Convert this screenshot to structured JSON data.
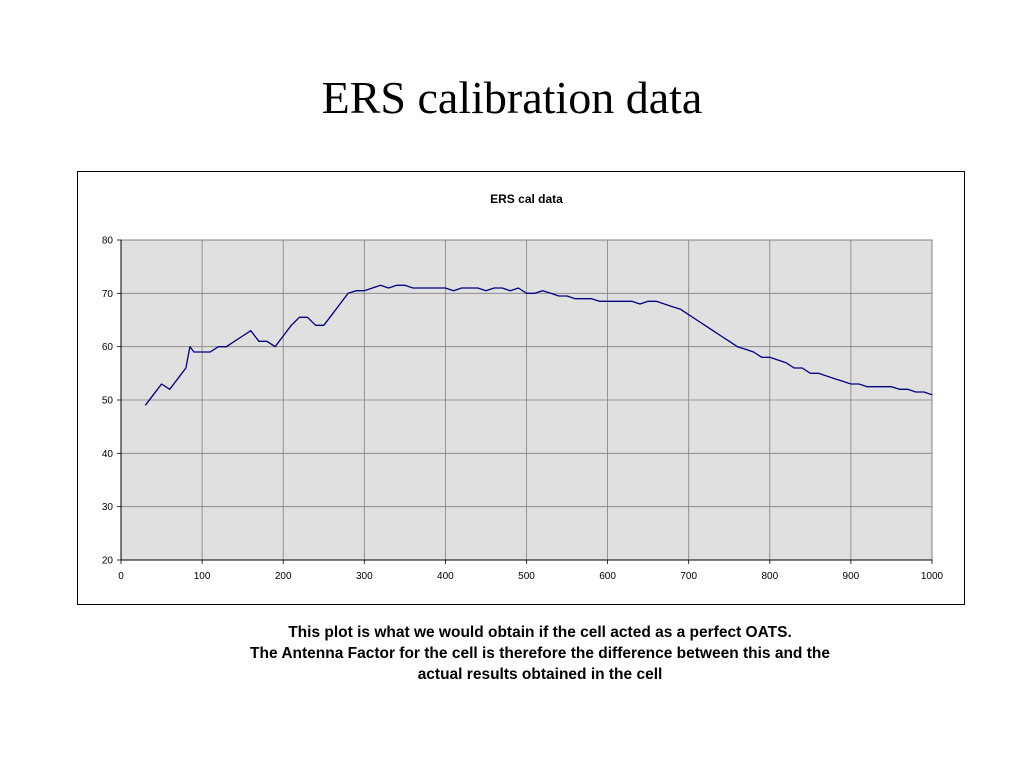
{
  "slide": {
    "title": "ERS calibration data",
    "caption": [
      "This plot is what we would obtain if the cell acted as a perfect OATS.",
      "The Antenna Factor for the cell is therefore the difference between this and the",
      "actual results obtained in the cell"
    ]
  },
  "colors": {
    "line": "#000080",
    "plot_background": "#e0e0e0",
    "grid": "#808080"
  },
  "chart_data": {
    "type": "line",
    "title": "ERS cal data",
    "xlabel": "",
    "ylabel": "",
    "xlim": [
      0,
      1000
    ],
    "ylim": [
      20,
      80
    ],
    "x_ticks": [
      0,
      100,
      200,
      300,
      400,
      500,
      600,
      700,
      800,
      900,
      1000
    ],
    "y_ticks": [
      20,
      30,
      40,
      50,
      60,
      70,
      80
    ],
    "grid": true,
    "legend": "none",
    "series": [
      {
        "x": [
          30,
          40,
          50,
          60,
          70,
          80,
          85,
          90,
          100,
          110,
          120,
          130,
          140,
          150,
          160,
          170,
          180,
          190,
          200,
          210,
          220,
          230,
          240,
          250,
          260,
          270,
          280,
          290,
          300,
          310,
          320,
          330,
          340,
          350,
          360,
          370,
          380,
          390,
          400,
          410,
          420,
          430,
          440,
          450,
          460,
          470,
          480,
          490,
          500,
          510,
          520,
          530,
          540,
          550,
          560,
          570,
          580,
          590,
          600,
          610,
          620,
          630,
          640,
          650,
          660,
          670,
          680,
          690,
          700,
          710,
          720,
          730,
          740,
          750,
          760,
          770,
          780,
          790,
          800,
          810,
          820,
          830,
          840,
          850,
          860,
          870,
          880,
          890,
          900,
          910,
          920,
          930,
          940,
          950,
          960,
          970,
          980,
          990,
          1000
        ],
        "values": [
          49,
          51,
          53,
          52,
          54,
          56,
          60,
          59,
          59,
          59,
          60,
          60,
          61,
          62,
          63,
          61,
          61,
          60,
          62,
          64,
          65.5,
          65.5,
          64,
          64,
          66,
          68,
          70,
          70.5,
          70.5,
          71,
          71.5,
          71,
          71.5,
          71.5,
          71,
          71,
          71,
          71,
          71,
          70.5,
          71,
          71,
          71,
          70.5,
          71,
          71,
          70.5,
          71,
          70,
          70,
          70.5,
          70,
          69.5,
          69.5,
          69,
          69,
          69,
          68.5,
          68.5,
          68.5,
          68.5,
          68.5,
          68,
          68.5,
          68.5,
          68,
          67.5,
          67,
          66,
          65,
          64,
          63,
          62,
          61,
          60,
          59.5,
          59,
          58,
          58,
          57.5,
          57,
          56,
          56,
          55,
          55,
          54.5,
          54,
          53.5,
          53,
          53,
          52.5,
          52.5,
          52.5,
          52.5,
          52,
          52,
          51.5,
          51.5,
          51
        ]
      }
    ]
  }
}
